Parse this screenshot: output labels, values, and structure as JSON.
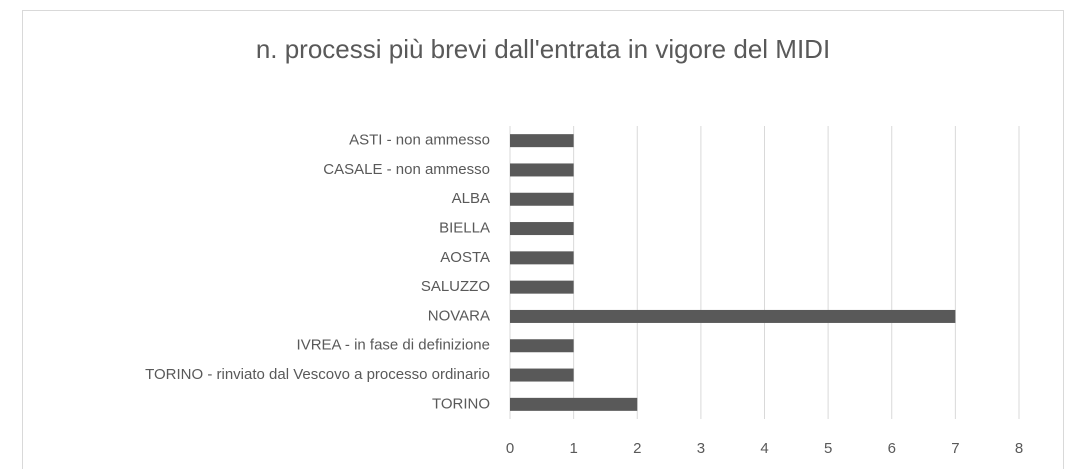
{
  "chart_data": {
    "type": "bar",
    "orientation": "horizontal",
    "title": "n. processi più brevi dall'entrata in vigore del MIDI",
    "categories": [
      "ASTI - non ammesso",
      "CASALE - non ammesso",
      "ALBA",
      "BIELLA",
      "AOSTA",
      "SALUZZO",
      "NOVARA",
      "IVREA - in fase di definizione",
      "TORINO - rinviato dal Vescovo a processo ordinario",
      "TORINO"
    ],
    "values": [
      1,
      1,
      1,
      1,
      1,
      1,
      7,
      1,
      1,
      2
    ],
    "color": "#595959",
    "xlim": [
      0,
      8
    ],
    "xticks": [
      0,
      1,
      2,
      3,
      4,
      5,
      6,
      7,
      8
    ],
    "grid": true
  }
}
